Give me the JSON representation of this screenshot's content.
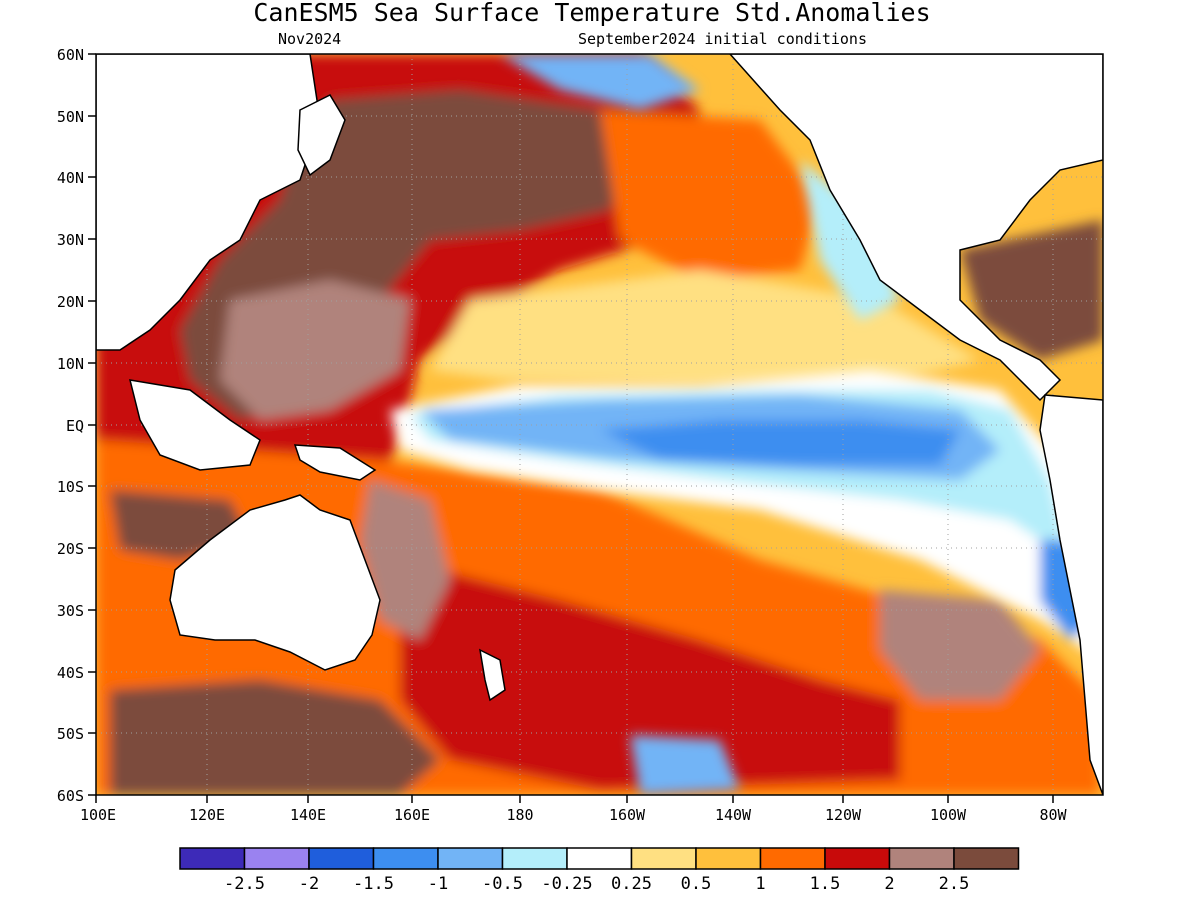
{
  "title": "CanESM5 Sea Surface Temperature Std.Anomalies",
  "subtitle_left": "Nov2024",
  "subtitle_right": "September2024 initial conditions",
  "lat_labels": [
    "60N",
    "50N",
    "40N",
    "30N",
    "20N",
    "10N",
    "EQ",
    "10S",
    "20S",
    "30S",
    "40S",
    "50S",
    "60S"
  ],
  "lon_labels": [
    "100E",
    "120E",
    "140E",
    "160E",
    "180",
    "160W",
    "140W",
    "120W",
    "100W",
    "80W"
  ],
  "colorbar": {
    "colors": [
      "#3d2ab8",
      "#9a82f0",
      "#1f5edc",
      "#3d8ef0",
      "#72b4f6",
      "#b4eefa",
      "#ffffff",
      "#ffe082",
      "#ffc03c",
      "#ff6a00",
      "#c80a0a",
      "#b0837c",
      "#7b4b3c"
    ],
    "labels": [
      "-2.5",
      "-2",
      "-1.5",
      "-1",
      "-0.5",
      "-0.25",
      "0.25",
      "0.5",
      "1",
      "1.5",
      "2",
      "2.5"
    ]
  },
  "map_colors": {
    "land": "#ffffff",
    "coast": "#000000",
    "grid": "#a0a0a0"
  }
}
